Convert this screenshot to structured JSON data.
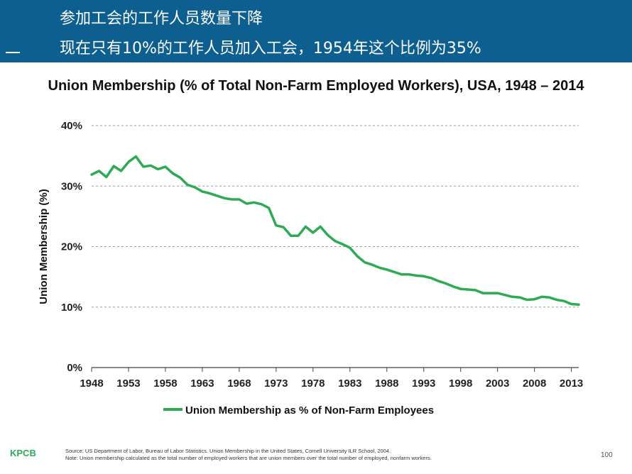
{
  "header": {
    "line1": "参加工会的工作人员数量下降",
    "line2": "现在只有10%的工作人员加入工会，1954年这个比例为35%"
  },
  "chart_data": {
    "type": "line",
    "title": "Union Membership (% of Total Non-Farm Employed Workers), USA, 1948 – 2014",
    "xlabel": "",
    "ylabel": "Union Membership (%)",
    "xlim": [
      1948,
      2014
    ],
    "ylim": [
      0,
      40
    ],
    "yticks": [
      0,
      10,
      20,
      30,
      40
    ],
    "ytick_labels": [
      "0%",
      "10%",
      "20%",
      "30%",
      "40%"
    ],
    "xticks": [
      1948,
      1953,
      1958,
      1963,
      1968,
      1973,
      1978,
      1983,
      1988,
      1993,
      1998,
      2003,
      2008,
      2013
    ],
    "xtick_labels": [
      "1948",
      "1953",
      "1958",
      "1963",
      "1968",
      "1973",
      "1978",
      "1983",
      "1988",
      "1993",
      "1998",
      "2003",
      "2008",
      "2013"
    ],
    "grid": "horizontal dashed",
    "legend_position": "bottom-center",
    "series": [
      {
        "name": "Union Membership as % of Non-Farm Employees",
        "color": "#2eaa54",
        "x": [
          1948,
          1949,
          1950,
          1951,
          1952,
          1953,
          1954,
          1955,
          1956,
          1957,
          1958,
          1959,
          1960,
          1961,
          1962,
          1963,
          1964,
          1965,
          1966,
          1967,
          1968,
          1969,
          1970,
          1971,
          1972,
          1973,
          1974,
          1975,
          1976,
          1977,
          1978,
          1979,
          1980,
          1981,
          1982,
          1983,
          1984,
          1985,
          1986,
          1987,
          1988,
          1989,
          1990,
          1991,
          1992,
          1993,
          1994,
          1995,
          1996,
          1997,
          1998,
          1999,
          2000,
          2001,
          2002,
          2003,
          2004,
          2005,
          2006,
          2007,
          2008,
          2009,
          2010,
          2011,
          2012,
          2013,
          2014
        ],
        "y": [
          31.9,
          32.5,
          31.5,
          33.3,
          32.5,
          34.0,
          34.9,
          33.2,
          33.4,
          32.8,
          33.2,
          32.1,
          31.4,
          30.2,
          29.8,
          29.1,
          28.8,
          28.4,
          28.0,
          27.8,
          27.8,
          27.1,
          27.3,
          27.0,
          26.4,
          23.5,
          23.2,
          21.8,
          21.8,
          23.3,
          22.3,
          23.3,
          21.9,
          20.9,
          20.4,
          19.8,
          18.4,
          17.4,
          17.0,
          16.5,
          16.2,
          15.8,
          15.4,
          15.4,
          15.2,
          15.1,
          14.8,
          14.3,
          13.9,
          13.4,
          13.0,
          12.9,
          12.8,
          12.3,
          12.3,
          12.3,
          12.0,
          11.7,
          11.6,
          11.2,
          11.3,
          11.7,
          11.6,
          11.2,
          11.0,
          10.5,
          10.4
        ]
      }
    ],
    "source_line1": "Source: US Department of Labor, Bureau of Labor Statistics. Union Membership in the United States, Cornell University ILR School, 2004.",
    "source_line2": "Note: Union membership calculated as the total number of employed workers that are union members over the total number of employed, nonfarm workers."
  },
  "footer": {
    "logo": "KPCB",
    "page_number": "100"
  },
  "colors": {
    "header_bg": "#0c5f8f",
    "line": "#2eaa54",
    "grid": "#999999"
  }
}
